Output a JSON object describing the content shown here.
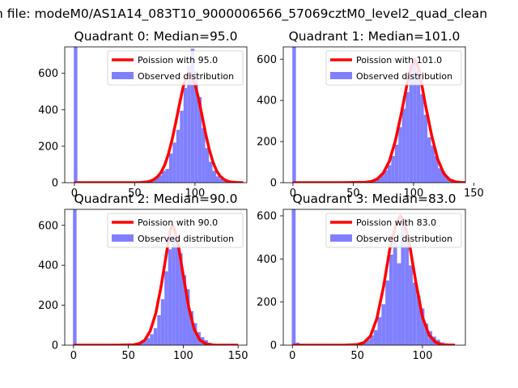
{
  "suptitle": "n file: modeM0/AS1A14_083T10_9000006566_57069cztM0_level2_quad_clean",
  "colors": {
    "hist": "#8080ff",
    "fit": "#ff0000",
    "axis": "#000000"
  },
  "chart_data": [
    {
      "type": "bar",
      "title": "Quadrant 0: Median=95.0",
      "median": 95.0,
      "legend": [
        "Poission with 95.0",
        "Observed distribution"
      ],
      "legend_position": "top-right",
      "xlim": [
        -8,
        143
      ],
      "ylim": [
        0,
        745
      ],
      "xticks": [
        0,
        50,
        100
      ],
      "yticks": [
        0,
        200,
        400,
        600
      ],
      "x_tick_labels": [
        "0",
        "50",
        "100"
      ],
      "y_tick_labels": [
        "0",
        "200",
        "400",
        "600"
      ],
      "bin_width": 3.0,
      "bins": [
        [
          -0.5,
          745
        ],
        [
          2.5,
          4
        ],
        [
          49.5,
          2
        ],
        [
          54.5,
          5
        ],
        [
          57.5,
          10
        ],
        [
          60.5,
          12
        ],
        [
          63.5,
          18
        ],
        [
          66.5,
          28
        ],
        [
          69.5,
          40
        ],
        [
          72.5,
          65
        ],
        [
          75.5,
          75
        ],
        [
          78.5,
          160
        ],
        [
          81.5,
          220
        ],
        [
          84.5,
          290
        ],
        [
          87.5,
          395
        ],
        [
          90.5,
          520
        ],
        [
          93.5,
          640
        ],
        [
          96.5,
          735
        ],
        [
          99.5,
          610
        ],
        [
          102.5,
          470
        ],
        [
          105.5,
          300
        ],
        [
          108.5,
          190
        ],
        [
          111.5,
          115
        ],
        [
          114.5,
          65
        ],
        [
          117.5,
          35
        ],
        [
          120.5,
          22
        ],
        [
          123.5,
          10
        ],
        [
          127.5,
          4
        ],
        [
          133.5,
          2
        ]
      ],
      "fit_x": [
        0,
        10,
        20,
        30,
        40,
        50,
        55,
        60,
        63,
        66,
        69,
        72,
        75,
        78,
        81,
        84,
        87,
        90,
        93,
        95,
        97,
        100,
        103,
        106,
        109,
        112,
        115,
        118,
        121,
        124,
        127,
        130,
        135,
        140
      ],
      "fit_y": [
        0,
        0,
        0,
        0,
        0,
        0,
        1,
        4,
        9,
        18,
        33,
        58,
        99,
        158,
        236,
        328,
        427,
        520,
        586,
        600,
        586,
        540,
        460,
        362,
        264,
        178,
        111,
        64,
        35,
        18,
        8,
        3,
        1,
        0
      ]
    },
    {
      "type": "bar",
      "title": "Quadrant 1: Median=101.0",
      "median": 101.0,
      "legend": [
        "Poission with 101.0",
        "Observed distribution"
      ],
      "legend_position": "top-right",
      "xlim": [
        -8,
        143
      ],
      "ylim": [
        0,
        660
      ],
      "xticks": [
        0,
        50,
        100,
        150
      ],
      "yticks": [
        0,
        200,
        400,
        600
      ],
      "x_tick_labels": [
        "0",
        "50",
        "100",
        "150"
      ],
      "y_tick_labels": [
        "0",
        "200",
        "400",
        "600"
      ],
      "bin_width": 3.0,
      "bins": [
        [
          -0.5,
          660
        ],
        [
          2.5,
          6
        ],
        [
          61.5,
          5
        ],
        [
          66.5,
          12
        ],
        [
          69.5,
          20
        ],
        [
          72.5,
          40
        ],
        [
          75.5,
          60
        ],
        [
          78.5,
          85
        ],
        [
          81.5,
          130
        ],
        [
          84.5,
          185
        ],
        [
          87.5,
          270
        ],
        [
          90.5,
          360
        ],
        [
          93.5,
          440
        ],
        [
          96.5,
          570
        ],
        [
          99.5,
          590
        ],
        [
          102.5,
          540
        ],
        [
          105.5,
          430
        ],
        [
          108.5,
          330
        ],
        [
          111.5,
          220
        ],
        [
          114.5,
          180
        ],
        [
          117.5,
          130
        ],
        [
          120.5,
          70
        ],
        [
          123.5,
          55
        ],
        [
          126.5,
          25
        ],
        [
          129.5,
          15
        ],
        [
          133.5,
          5
        ]
      ],
      "fit_x": [
        0,
        20,
        40,
        60,
        65,
        70,
        75,
        80,
        85,
        90,
        95,
        98,
        101,
        104,
        107,
        110,
        115,
        120,
        125,
        130,
        135,
        140,
        145
      ],
      "fit_y": [
        0,
        0,
        0,
        2,
        6,
        18,
        48,
        105,
        205,
        340,
        490,
        560,
        600,
        560,
        470,
        375,
        230,
        115,
        45,
        14,
        4,
        1,
        0
      ]
    },
    {
      "type": "bar",
      "title": "Quadrant 2: Median=90.0",
      "median": 90.0,
      "legend": [
        "Poission with 90.0",
        "Observed distribution"
      ],
      "legend_position": "top-right",
      "xlim": [
        -8,
        158
      ],
      "ylim": [
        0,
        680
      ],
      "xticks": [
        0,
        50,
        100,
        150
      ],
      "yticks": [
        0,
        200,
        400,
        600
      ],
      "x_tick_labels": [
        "0",
        "50",
        "100",
        "150"
      ],
      "y_tick_labels": [
        "0",
        "200",
        "400",
        "600"
      ],
      "bin_width": 3.3,
      "bins": [
        [
          -0.5,
          680
        ],
        [
          2.8,
          2
        ],
        [
          52.5,
          3
        ],
        [
          56.5,
          6
        ],
        [
          59.8,
          12
        ],
        [
          63.1,
          20
        ],
        [
          66.4,
          35
        ],
        [
          69.7,
          55
        ],
        [
          73,
          85
        ],
        [
          76.3,
          150
        ],
        [
          79.6,
          230
        ],
        [
          82.9,
          370
        ],
        [
          86.2,
          480
        ],
        [
          89.5,
          545
        ],
        [
          92.8,
          520
        ],
        [
          96.1,
          460
        ],
        [
          99.4,
          350
        ],
        [
          102.7,
          280
        ],
        [
          106,
          170
        ],
        [
          109.3,
          110
        ],
        [
          112.6,
          65
        ],
        [
          115.9,
          40
        ],
        [
          119.2,
          25
        ],
        [
          122.5,
          12
        ],
        [
          126,
          6
        ]
      ],
      "fit_x": [
        0,
        20,
        40,
        55,
        60,
        65,
        70,
        75,
        80,
        85,
        88,
        90,
        92,
        95,
        100,
        105,
        110,
        115,
        120,
        125,
        130,
        150
      ],
      "fit_y": [
        0,
        0,
        0,
        2,
        8,
        25,
        72,
        160,
        300,
        470,
        570,
        600,
        580,
        520,
        350,
        190,
        80,
        27,
        8,
        2,
        0,
        0
      ]
    },
    {
      "type": "bar",
      "title": "Quadrant 3: Median=83.0",
      "median": 83.0,
      "legend": [
        "Poission with 83.0",
        "Observed distribution"
      ],
      "legend_position": "top-right",
      "xlim": [
        -7,
        133
      ],
      "ylim": [
        0,
        630
      ],
      "xticks": [
        0,
        50,
        100
      ],
      "yticks": [
        0,
        200,
        400,
        600
      ],
      "x_tick_labels": [
        "0",
        "50",
        "100"
      ],
      "y_tick_labels": [
        "0",
        "200",
        "400",
        "600"
      ],
      "bin_width": 3.0,
      "bins": [
        [
          -0.5,
          630
        ],
        [
          2.5,
          12
        ],
        [
          46.5,
          4
        ],
        [
          50.5,
          8
        ],
        [
          53.5,
          15
        ],
        [
          56.5,
          25
        ],
        [
          59.5,
          45
        ],
        [
          62.5,
          70
        ],
        [
          65.5,
          130
        ],
        [
          68.5,
          190
        ],
        [
          71.5,
          300
        ],
        [
          74.5,
          420
        ],
        [
          77.5,
          480
        ],
        [
          80.5,
          380
        ],
        [
          83.5,
          585
        ],
        [
          86.5,
          480
        ],
        [
          89.5,
          370
        ],
        [
          92.5,
          290
        ],
        [
          95.5,
          230
        ],
        [
          98.5,
          170
        ],
        [
          101.5,
          100
        ],
        [
          104.5,
          65
        ],
        [
          107.5,
          40
        ],
        [
          110.5,
          25
        ],
        [
          113.5,
          12
        ],
        [
          116.5,
          6
        ]
      ],
      "fit_x": [
        0,
        20,
        40,
        50,
        55,
        60,
        65,
        70,
        75,
        80,
        83,
        86,
        90,
        95,
        100,
        105,
        110,
        115,
        120,
        125
      ],
      "fit_y": [
        0,
        0,
        0,
        3,
        12,
        42,
        125,
        270,
        450,
        570,
        600,
        575,
        470,
        290,
        130,
        48,
        14,
        3,
        1,
        0
      ]
    }
  ]
}
